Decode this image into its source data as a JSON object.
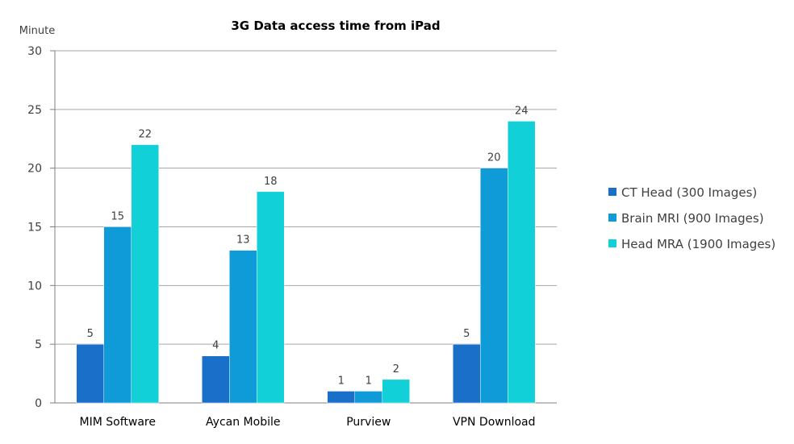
{
  "chart_data": {
    "type": "bar",
    "title": "3G Data access time from iPad",
    "ylabel": "Minute",
    "xlabel": "",
    "ylim": [
      0,
      30
    ],
    "ytick_step": 5,
    "grid": true,
    "legend_position": "right",
    "categories": [
      "MIM Software",
      "Aycan Mobile",
      "Purview",
      "VPN Download"
    ],
    "series": [
      {
        "name": "CT Head (300 Images)",
        "color": "#1a6fc9",
        "values": [
          5,
          4,
          1,
          5
        ]
      },
      {
        "name": "Brain MRI (900 Images)",
        "color": "#0f9ad8",
        "values": [
          15,
          13,
          1,
          20
        ]
      },
      {
        "name": "Head MRA (1900 Images)",
        "color": "#12d0d8",
        "values": [
          22,
          18,
          2,
          24
        ]
      }
    ]
  }
}
